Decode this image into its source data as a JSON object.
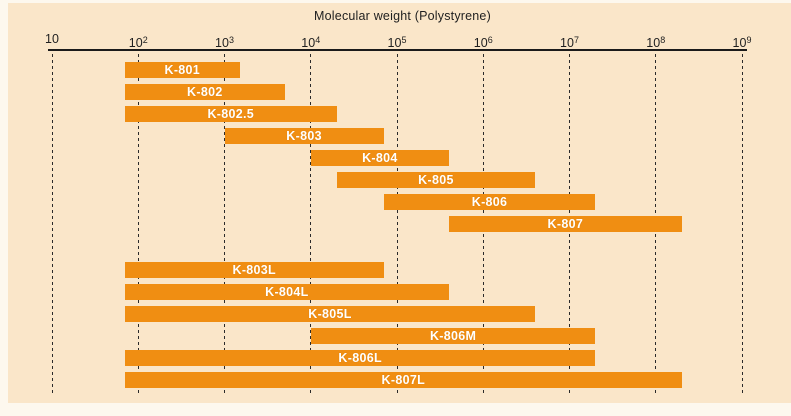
{
  "chart_data": {
    "type": "bar",
    "subtype": "horizontal-range-bars-log-scale",
    "title": "Molecular weight (Polystyrene)",
    "x_axis": {
      "scale": "log10",
      "min": 10,
      "max": 1000000000,
      "grid": "dashed-vertical",
      "ticks": [
        {
          "value": 10,
          "label": "10",
          "sup": ""
        },
        {
          "value": 100,
          "label": "10",
          "sup": "2"
        },
        {
          "value": 1000,
          "label": "10",
          "sup": "3"
        },
        {
          "value": 10000,
          "label": "10",
          "sup": "4"
        },
        {
          "value": 100000,
          "label": "10",
          "sup": "5"
        },
        {
          "value": 1000000,
          "label": "10",
          "sup": "6"
        },
        {
          "value": 10000000,
          "label": "10",
          "sup": "7"
        },
        {
          "value": 100000000,
          "label": "10",
          "sup": "8"
        },
        {
          "value": 1000000000,
          "label": "10",
          "sup": "9"
        }
      ]
    },
    "series": [
      {
        "name": "K-801",
        "mw_min": 70,
        "mw_max": 1500,
        "group": 1
      },
      {
        "name": "K-802",
        "mw_min": 70,
        "mw_max": 5000,
        "group": 1
      },
      {
        "name": "K-802.5",
        "mw_min": 70,
        "mw_max": 20000,
        "group": 1
      },
      {
        "name": "K-803",
        "mw_min": 1000,
        "mw_max": 70000,
        "group": 1
      },
      {
        "name": "K-804",
        "mw_min": 10000,
        "mw_max": 400000,
        "group": 1
      },
      {
        "name": "K-805",
        "mw_min": 20000,
        "mw_max": 4000000,
        "group": 1
      },
      {
        "name": "K-806",
        "mw_min": 70000,
        "mw_max": 20000000,
        "group": 1
      },
      {
        "name": "K-807",
        "mw_min": 400000,
        "mw_max": 200000000,
        "group": 1
      },
      {
        "name": "K-803L",
        "mw_min": 70,
        "mw_max": 70000,
        "group": 2
      },
      {
        "name": "K-804L",
        "mw_min": 70,
        "mw_max": 400000,
        "group": 2
      },
      {
        "name": "K-805L",
        "mw_min": 70,
        "mw_max": 4000000,
        "group": 2
      },
      {
        "name": "K-806M",
        "mw_min": 10000,
        "mw_max": 20000000,
        "group": 2
      },
      {
        "name": "K-806L",
        "mw_min": 70,
        "mw_max": 20000000,
        "group": 2
      },
      {
        "name": "K-807L",
        "mw_min": 70,
        "mw_max": 200000000,
        "group": 2
      }
    ]
  },
  "colors": {
    "panel_background": "#fae6c9",
    "bar": "#f08e12",
    "bar_label": "#ffffff",
    "axis": "#1a1a1a",
    "grid": "#2a2a2a"
  }
}
